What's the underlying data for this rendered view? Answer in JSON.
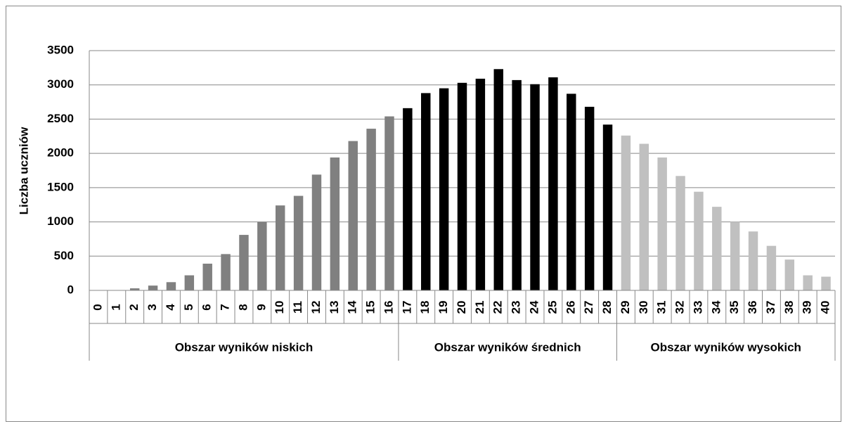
{
  "chart_data": {
    "type": "bar",
    "y_label": "Liczba uczniów",
    "ylim": [
      0,
      3500
    ],
    "yticks": [
      0,
      500,
      1000,
      1500,
      2000,
      2500,
      3000,
      3500
    ],
    "grid": true,
    "series": [
      {
        "name": "Obszar wyników niskich",
        "color": "#808080",
        "categories": [
          "0",
          "1",
          "2",
          "3",
          "4",
          "5",
          "6",
          "7",
          "8",
          "9",
          "10",
          "11",
          "12",
          "13",
          "14",
          "15",
          "16"
        ],
        "values": [
          0,
          5,
          30,
          70,
          120,
          220,
          390,
          530,
          810,
          1000,
          1240,
          1380,
          1690,
          1940,
          2180,
          2360,
          2540
        ]
      },
      {
        "name": "Obszar wyników średnich",
        "color": "#000000",
        "categories": [
          "17",
          "18",
          "19",
          "20",
          "21",
          "22",
          "23",
          "24",
          "25",
          "26",
          "27",
          "28"
        ],
        "values": [
          2660,
          2880,
          2950,
          3030,
          3090,
          3230,
          3070,
          3010,
          3110,
          2870,
          2680,
          2420
        ]
      },
      {
        "name": "Obszar wyników wysokich",
        "color": "#c0c0c0",
        "categories": [
          "29",
          "30",
          "31",
          "32",
          "33",
          "34",
          "35",
          "36",
          "37",
          "38",
          "39",
          "40"
        ],
        "values": [
          2260,
          2140,
          1940,
          1670,
          1440,
          1220,
          1000,
          860,
          650,
          450,
          220,
          200
        ]
      }
    ]
  }
}
